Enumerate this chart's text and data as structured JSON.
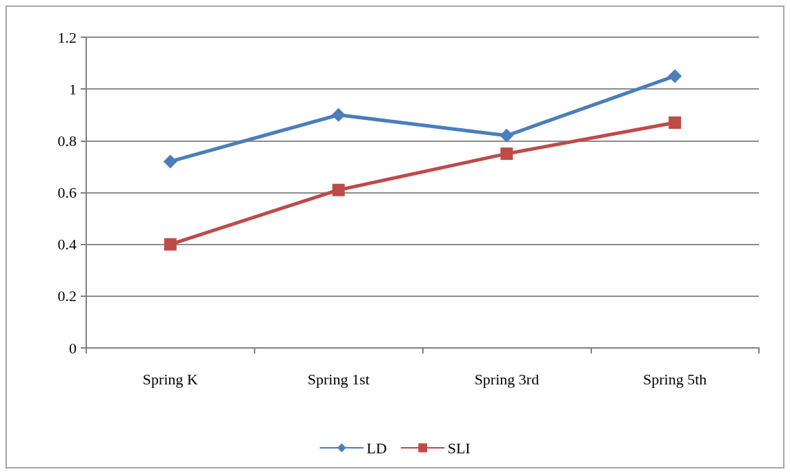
{
  "chart_data": {
    "type": "line",
    "categories": [
      "Spring K",
      "Spring 1st",
      "Spring 3rd",
      "Spring 5th"
    ],
    "series": [
      {
        "name": "LD",
        "color": "#4a7ebb",
        "marker": "diamond",
        "values": [
          0.72,
          0.9,
          0.82,
          1.05
        ]
      },
      {
        "name": "SLI",
        "color": "#be4b48",
        "marker": "square",
        "values": [
          0.4,
          0.61,
          0.75,
          0.87
        ]
      }
    ],
    "ylim": [
      0,
      1.2
    ],
    "yticks": [
      0,
      0.2,
      0.4,
      0.6,
      0.8,
      1,
      1.2
    ],
    "grid": "y",
    "legend": "bottom",
    "line_style": "solid"
  }
}
